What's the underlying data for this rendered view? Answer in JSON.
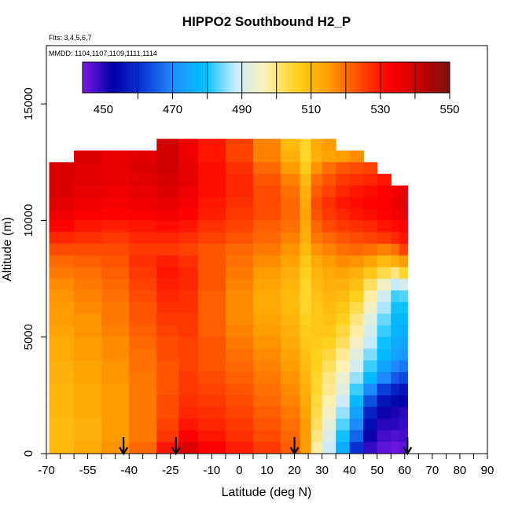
{
  "chart_data": {
    "type": "heatmap",
    "title": "HIPPO2 Southbound H2_P",
    "notes": {
      "flights": "Flts: 3,4,5,6,7",
      "dates": "MMDD: 1104,1107,1109,1111,1114"
    },
    "xlabel": "Latitude (deg N)",
    "ylabel": "Altitude (m)",
    "xlim": [
      -70,
      90
    ],
    "ylim": [
      0,
      17500
    ],
    "x_ticks": [
      -70,
      -55,
      -40,
      -25,
      -10,
      0,
      10,
      20,
      30,
      40,
      50,
      60,
      70,
      80,
      90
    ],
    "x_minor_ticks": [
      -65,
      -60,
      -50,
      -45,
      -35,
      -30,
      -20,
      -15,
      -5,
      5,
      15,
      25,
      35,
      45,
      55,
      65,
      75,
      85
    ],
    "y_ticks": [
      0,
      5000,
      10000,
      15000
    ],
    "colorbar": {
      "min": 444,
      "max": 550,
      "tick_values": [
        450,
        470,
        490,
        510,
        530,
        550
      ],
      "boundaries": [
        460,
        470,
        480,
        490,
        500,
        510,
        520,
        530,
        540,
        550
      ],
      "colors": [
        "#7a18e8",
        "#0000a8",
        "#0a3ad8",
        "#1e90ff",
        "#00bfff",
        "#c8ecff",
        "#fff0b4",
        "#ffd21e",
        "#ffa000",
        "#ff5000",
        "#ff0000",
        "#c80000",
        "#7a1010"
      ]
    },
    "flight_latitudes": [
      -42,
      -23,
      20,
      61
    ],
    "field": {
      "lat_edges": [
        -69,
        -60,
        -50,
        -40,
        -30,
        -22,
        -15,
        -5,
        5,
        15,
        22,
        26,
        30,
        35,
        40,
        45,
        50,
        55,
        58,
        61
      ],
      "alt_bands": [
        {
          "top": 13500,
          "vals": [
            null,
            null,
            null,
            null,
            540,
            535,
            530,
            525,
            518,
            510,
            505,
            513,
            515,
            null,
            null,
            null,
            null,
            null,
            null
          ]
        },
        {
          "top": 13000,
          "vals": [
            null,
            538,
            536,
            537,
            540,
            535,
            530,
            525,
            518,
            512,
            505,
            512,
            514,
            515,
            517,
            null,
            null,
            null,
            null
          ]
        },
        {
          "top": 12500,
          "vals": [
            538,
            537,
            536,
            538,
            540,
            536,
            531,
            527,
            521,
            515,
            507,
            516,
            520,
            523,
            524,
            525,
            null,
            null,
            null
          ]
        },
        {
          "top": 12000,
          "vals": [
            538,
            537,
            536,
            537,
            539,
            536,
            531,
            528,
            523,
            518,
            510,
            520,
            523,
            526,
            527,
            528,
            530,
            null,
            null
          ]
        },
        {
          "top": 11500,
          "vals": [
            538,
            536,
            535,
            536,
            538,
            535,
            531,
            528,
            524,
            520,
            512,
            522,
            525,
            528,
            530,
            531,
            532,
            534,
            536
          ]
        },
        {
          "top": 11000,
          "vals": [
            537,
            535,
            534,
            535,
            536,
            534,
            530,
            527,
            524,
            521,
            513,
            524,
            527,
            530,
            531,
            532,
            533,
            535,
            537
          ]
        },
        {
          "top": 10500,
          "vals": [
            535,
            533,
            532,
            533,
            534,
            532,
            529,
            526,
            524,
            521,
            514,
            523,
            526,
            528,
            530,
            531,
            532,
            534,
            535
          ]
        },
        {
          "top": 10000,
          "vals": [
            532,
            530,
            529,
            530,
            531,
            530,
            527,
            525,
            522,
            520,
            513,
            521,
            524,
            526,
            527,
            528,
            530,
            531,
            532
          ]
        },
        {
          "top": 9500,
          "vals": [
            528,
            527,
            526,
            528,
            528,
            527,
            525,
            523,
            521,
            518,
            512,
            519,
            521,
            523,
            524,
            525,
            526,
            528,
            530
          ]
        },
        {
          "top": 9000,
          "vals": [
            524,
            524,
            524,
            526,
            526,
            525,
            523,
            521,
            519,
            516,
            510,
            516,
            518,
            520,
            521,
            520,
            518,
            520,
            525
          ]
        },
        {
          "top": 8500,
          "vals": [
            521,
            522,
            523,
            527,
            529,
            527,
            523,
            520,
            517,
            514,
            508,
            513,
            515,
            517,
            516,
            514,
            510,
            512,
            515
          ]
        },
        {
          "top": 8000,
          "vals": [
            519,
            520,
            522,
            526,
            530,
            528,
            523,
            519,
            515,
            512,
            506,
            511,
            513,
            514,
            512,
            508,
            503,
            500,
            505
          ]
        },
        {
          "top": 7500,
          "vals": [
            517,
            519,
            521,
            525,
            529,
            528,
            523,
            518,
            514,
            511,
            505,
            510,
            512,
            512,
            509,
            502,
            495,
            488,
            490
          ]
        },
        {
          "top": 7000,
          "vals": [
            516,
            518,
            520,
            524,
            528,
            527,
            522,
            517,
            513,
            510,
            505,
            509,
            511,
            510,
            506,
            498,
            490,
            482,
            483
          ]
        },
        {
          "top": 6500,
          "vals": [
            515,
            517,
            519,
            523,
            527,
            527,
            522,
            517,
            513,
            510,
            505,
            508,
            510,
            508,
            503,
            495,
            487,
            480,
            480
          ]
        },
        {
          "top": 6000,
          "vals": [
            515,
            516,
            519,
            523,
            526,
            526,
            522,
            517,
            514,
            511,
            506,
            508,
            509,
            506,
            500,
            492,
            484,
            478,
            478
          ]
        },
        {
          "top": 5500,
          "vals": [
            514,
            516,
            518,
            522,
            525,
            526,
            522,
            518,
            515,
            512,
            507,
            508,
            508,
            504,
            498,
            490,
            482,
            477,
            476
          ]
        },
        {
          "top": 5000,
          "vals": [
            513,
            515,
            517,
            521,
            524,
            525,
            523,
            519,
            516,
            513,
            508,
            507,
            506,
            502,
            495,
            488,
            480,
            475,
            474
          ]
        },
        {
          "top": 4500,
          "vals": [
            513,
            515,
            517,
            520,
            524,
            525,
            523,
            520,
            517,
            514,
            509,
            506,
            504,
            499,
            492,
            485,
            478,
            474,
            472
          ]
        },
        {
          "top": 4000,
          "vals": [
            512,
            514,
            516,
            520,
            523,
            525,
            523,
            521,
            518,
            515,
            510,
            506,
            502,
            497,
            490,
            482,
            474,
            470,
            468
          ]
        },
        {
          "top": 3500,
          "vals": [
            512,
            514,
            516,
            519,
            523,
            526,
            524,
            522,
            519,
            516,
            511,
            505,
            500,
            494,
            486,
            478,
            470,
            465,
            463
          ]
        },
        {
          "top": 3000,
          "vals": [
            511,
            513,
            515,
            519,
            523,
            526,
            525,
            523,
            520,
            517,
            512,
            505,
            499,
            492,
            482,
            470,
            462,
            458,
            456
          ]
        },
        {
          "top": 2500,
          "vals": [
            511,
            513,
            515,
            519,
            524,
            527,
            526,
            524,
            521,
            518,
            513,
            504,
            497,
            489,
            478,
            464,
            456,
            454,
            453
          ]
        },
        {
          "top": 2000,
          "vals": [
            511,
            513,
            515,
            519,
            524,
            528,
            527,
            525,
            522,
            519,
            514,
            503,
            495,
            486,
            474,
            458,
            452,
            451,
            450
          ]
        },
        {
          "top": 1500,
          "vals": [
            510,
            512,
            515,
            519,
            525,
            530,
            528,
            526,
            523,
            520,
            515,
            502,
            493,
            483,
            470,
            455,
            450,
            450,
            449
          ]
        },
        {
          "top": 1000,
          "vals": [
            510,
            512,
            515,
            519,
            526,
            533,
            530,
            527,
            524,
            521,
            515,
            500,
            491,
            480,
            466,
            452,
            448,
            447,
            448
          ]
        },
        {
          "top": 500,
          "vals": [
            510,
            512,
            515,
            520,
            528,
            536,
            532,
            528,
            525,
            522,
            515,
            499,
            490,
            478,
            463,
            450,
            447,
            446,
            447
          ]
        },
        {
          "top": 0,
          "vals": [
            510,
            513,
            516,
            521,
            530,
            538,
            533,
            529,
            526,
            522,
            515,
            498,
            489,
            476,
            460,
            449,
            446,
            445,
            446
          ]
        }
      ]
    }
  }
}
